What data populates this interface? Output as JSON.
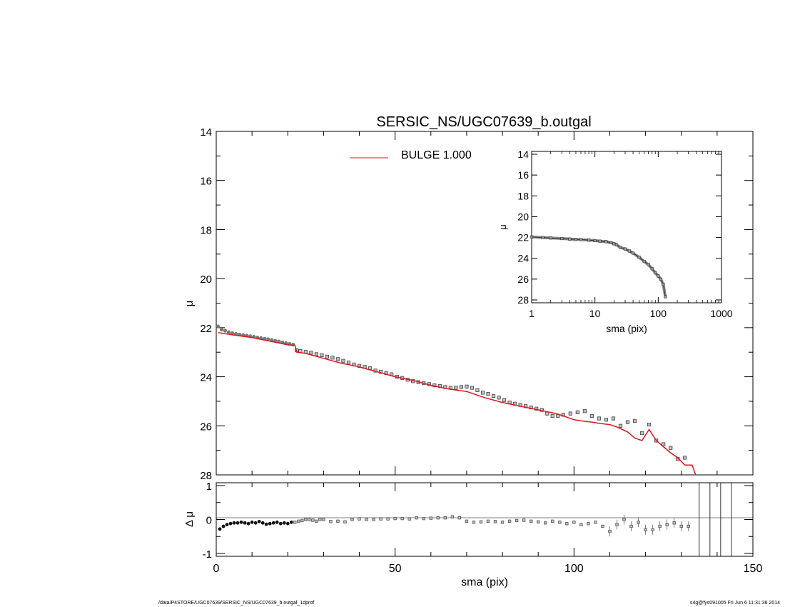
{
  "footer": {
    "left": "/data/P4STORE/UGC07639/SERSIC_NS/UGC07639_b.outgal_1dprof",
    "right": "s4g@fys091005  Fri Jun  6 11:31:36 2014"
  },
  "colors": {
    "model": "#e0141e",
    "data": "#555555",
    "frame": "#000000"
  },
  "chart_data": [
    {
      "id": "main",
      "type": "line",
      "title": "SERSIC_NS/UGC07639_b.outgal",
      "xlabel": "",
      "ylabel": "μ",
      "xlim": [
        0,
        150
      ],
      "ylim": [
        28,
        14
      ],
      "y_inverted": true,
      "yticks": [
        "14",
        "16",
        "18",
        "20",
        "22",
        "24",
        "26",
        "28"
      ],
      "legend": {
        "placement": "top-center",
        "label": "BULGE  1.000"
      },
      "series": [
        {
          "name": "data",
          "marker": "square",
          "x": [
            0.5,
            1.5,
            2.5,
            3.5,
            4.5,
            5.5,
            6.5,
            7.5,
            8.5,
            9.5,
            10.5,
            11.5,
            12.5,
            13.5,
            14.5,
            15.5,
            16.5,
            17.5,
            18.5,
            19.5,
            20.5,
            21.5,
            22.5,
            23.5,
            25,
            26.5,
            28,
            29.5,
            31,
            32.5,
            34,
            35.5,
            37,
            38.5,
            40,
            41.5,
            43,
            44.5,
            46,
            47.5,
            49,
            50.5,
            52,
            53.5,
            55,
            56.5,
            58,
            59.5,
            61,
            62.5,
            64,
            65.5,
            67,
            68.5,
            70,
            71.5,
            73,
            74.5,
            76,
            77.5,
            79,
            80.5,
            82,
            83.5,
            85,
            86.5,
            88,
            89.5,
            91,
            92.5,
            94,
            95.5,
            97,
            99,
            101,
            103,
            105,
            107,
            109,
            111,
            113,
            115,
            117,
            119,
            121,
            123,
            125,
            127,
            129,
            131,
            133
          ],
          "y": [
            21.95,
            22.08,
            22.12,
            22.18,
            22.22,
            22.25,
            22.28,
            22.3,
            22.32,
            22.35,
            22.37,
            22.4,
            22.42,
            22.45,
            22.47,
            22.5,
            22.53,
            22.56,
            22.6,
            22.63,
            22.66,
            22.69,
            22.92,
            22.95,
            22.98,
            23.02,
            23.08,
            23.12,
            23.18,
            23.22,
            23.28,
            23.35,
            23.42,
            23.5,
            23.56,
            23.6,
            23.65,
            23.75,
            23.8,
            23.85,
            23.9,
            24,
            24.05,
            24.12,
            24.18,
            24.22,
            24.26,
            24.3,
            24.35,
            24.38,
            24.42,
            24.45,
            24.45,
            24.42,
            24.4,
            24.45,
            24.55,
            24.65,
            24.7,
            24.78,
            24.85,
            24.95,
            25.05,
            25.1,
            25.15,
            25.2,
            25.25,
            25.3,
            25.35,
            25.5,
            25.6,
            25.6,
            25.55,
            25.5,
            25.45,
            25.4,
            25.6,
            25.7,
            25.75,
            25.7,
            26.0,
            25.85,
            25.8,
            26.3,
            25.95,
            26.6,
            26.75,
            26.9,
            27.35,
            27.3,
            28.1
          ]
        },
        {
          "name": "model",
          "x": [
            0.5,
            5,
            10,
            15,
            20,
            22,
            22.5,
            25,
            30,
            35,
            40,
            45,
            50,
            55,
            60,
            65,
            70,
            75,
            80,
            85,
            90,
            95,
            97,
            100,
            102,
            105,
            107,
            110,
            112,
            115,
            117,
            119,
            121,
            123,
            125,
            127,
            129,
            131,
            133,
            134
          ],
          "y": [
            22.2,
            22.3,
            22.4,
            22.55,
            22.7,
            22.72,
            23.0,
            23.05,
            23.25,
            23.45,
            23.6,
            23.8,
            24.0,
            24.15,
            24.35,
            24.5,
            24.6,
            24.85,
            25.05,
            25.2,
            25.35,
            25.5,
            25.6,
            25.75,
            25.8,
            25.85,
            25.9,
            25.95,
            26.05,
            26.25,
            26.5,
            26.6,
            26.15,
            26.6,
            26.85,
            27.1,
            27.3,
            27.6,
            27.6,
            28.1
          ]
        }
      ]
    },
    {
      "id": "residual",
      "type": "scatter",
      "xlabel": "sma (pix)",
      "ylabel": "Δ μ",
      "xlim": [
        0,
        150
      ],
      "ylim": [
        -1.0,
        1.0
      ],
      "yticks": [
        "-1",
        "0",
        "1"
      ],
      "xticks": [
        "0",
        "50",
        "100",
        "150"
      ],
      "vertical_lines_x": [
        135,
        138,
        141,
        144
      ],
      "series": [
        {
          "name": "residual",
          "x": [
            1,
            2,
            3,
            4,
            5,
            6,
            7,
            8,
            9,
            10,
            11,
            12,
            13,
            14,
            15,
            16,
            17,
            18,
            19,
            20,
            21,
            22,
            23,
            24,
            25,
            26,
            27,
            28,
            29,
            30,
            32,
            34,
            36,
            38,
            40,
            42,
            44,
            46,
            48,
            50,
            52,
            54,
            56,
            58,
            60,
            62,
            64,
            66,
            68,
            70,
            72,
            74,
            76,
            78,
            80,
            82,
            84,
            86,
            88,
            90,
            92,
            94,
            96,
            98,
            100,
            102,
            104,
            106,
            108,
            110,
            112,
            114,
            116,
            118,
            120,
            122,
            124,
            126,
            128,
            130,
            132
          ],
          "y": [
            -0.28,
            -0.2,
            -0.15,
            -0.12,
            -0.1,
            -0.1,
            -0.08,
            -0.1,
            -0.12,
            -0.08,
            -0.1,
            -0.06,
            -0.1,
            -0.14,
            -0.12,
            -0.1,
            -0.08,
            -0.12,
            -0.1,
            -0.12,
            -0.08,
            -0.08,
            -0.05,
            -0.03,
            0.0,
            0.0,
            -0.02,
            -0.05,
            0.0,
            0.0,
            -0.06,
            -0.05,
            -0.07,
            0.0,
            0.02,
            0.0,
            0.0,
            0.02,
            0.02,
            0.03,
            0.03,
            0.02,
            0.05,
            0.03,
            0.04,
            0.05,
            0.05,
            0.08,
            0.05,
            -0.05,
            -0.08,
            -0.07,
            -0.05,
            -0.06,
            -0.08,
            -0.05,
            -0.03,
            -0.02,
            -0.05,
            -0.07,
            -0.1,
            -0.05,
            -0.08,
            -0.12,
            -0.08,
            -0.15,
            -0.12,
            -0.08,
            -0.2,
            -0.35,
            -0.15,
            0.0,
            -0.2,
            -0.08,
            -0.3,
            -0.3,
            -0.2,
            -0.15,
            -0.1,
            -0.2,
            -0.2
          ]
        }
      ]
    },
    {
      "id": "inset",
      "type": "line",
      "xlabel": "sma (pix)",
      "ylabel": "μ",
      "x_scale": "log",
      "xlim": [
        1,
        1000
      ],
      "ylim": [
        28,
        14
      ],
      "y_inverted": true,
      "xticks": [
        "1",
        "10",
        "100",
        "1000"
      ],
      "yticks": [
        "14",
        "16",
        "18",
        "20",
        "22",
        "24",
        "26",
        "28"
      ],
      "series": [
        {
          "name": "data",
          "x": [
            1,
            1.5,
            2,
            3,
            4,
            5,
            6,
            8,
            10,
            12,
            15,
            18,
            20,
            22,
            25,
            30,
            35,
            40,
            50,
            60,
            70,
            80,
            90,
            100,
            110,
            120,
            130
          ],
          "y": [
            21.95,
            22.0,
            22.05,
            22.1,
            22.15,
            22.18,
            22.2,
            22.25,
            22.3,
            22.35,
            22.4,
            22.5,
            22.6,
            22.7,
            22.95,
            23.1,
            23.3,
            23.5,
            23.9,
            24.3,
            24.6,
            25.0,
            25.4,
            25.7,
            26.0,
            26.5,
            27.7
          ]
        }
      ]
    }
  ]
}
